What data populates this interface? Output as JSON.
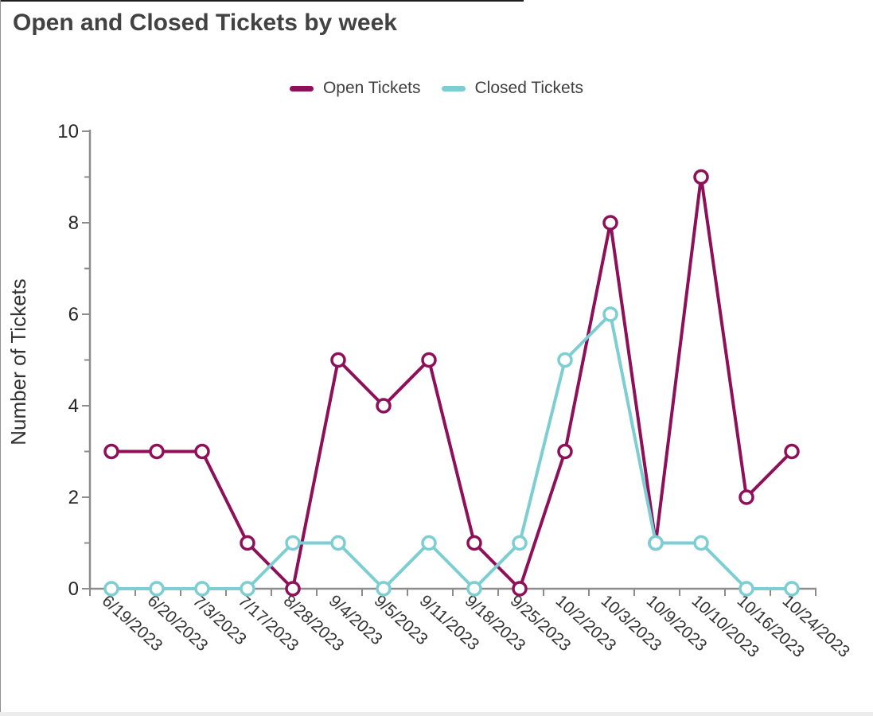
{
  "chart_data": {
    "type": "line",
    "title": "Open and Closed Tickets by week",
    "ylabel": "Number of Tickets",
    "xlabel": "",
    "ylim": [
      0,
      10
    ],
    "yticks": [
      0,
      2,
      4,
      6,
      8,
      10
    ],
    "minor_yticks": [
      1,
      3,
      5,
      7,
      9
    ],
    "grid": false,
    "legend_position": "top-center",
    "categories": [
      "6/19/2023",
      "6/20/2023",
      "7/3/2023",
      "7/17/2023",
      "8/28/2023",
      "9/4/2023",
      "9/5/2023",
      "9/11/2023",
      "9/18/2023",
      "9/25/2023",
      "10/2/2023",
      "10/3/2023",
      "10/9/2023",
      "10/10/2023",
      "10/16/2023",
      "10/24/2023"
    ],
    "series": [
      {
        "name": "Open Tickets",
        "color": "#8E1059",
        "values": [
          3,
          3,
          3,
          1,
          0,
          5,
          4,
          5,
          1,
          0,
          3,
          8,
          1,
          9,
          2,
          3
        ]
      },
      {
        "name": "Closed Tickets",
        "color": "#7CCED2",
        "values": [
          0,
          0,
          0,
          0,
          1,
          1,
          0,
          1,
          0,
          1,
          5,
          6,
          1,
          1,
          0,
          0
        ]
      }
    ],
    "colors": {
      "title_text": "#424242",
      "axis": "#8C8C8C",
      "y_tick_label": "#262626",
      "x_tick_label": "#333333",
      "legend_text": "#404040",
      "marker_fill": "#FFFFFF"
    }
  }
}
